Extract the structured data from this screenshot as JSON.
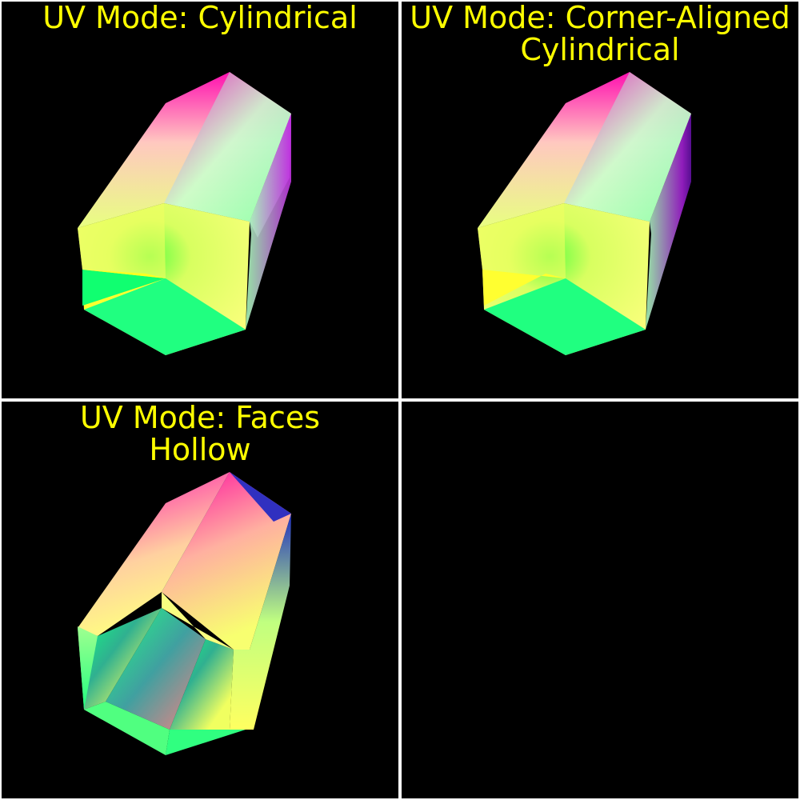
{
  "panels": [
    {
      "title": "UV Mode: Cylindrical"
    },
    {
      "title": "UV Mode: Corner-Aligned\nCylindrical"
    },
    {
      "title": "UV Mode: Faces\nHollow"
    },
    {
      "title": ""
    }
  ],
  "colors": {
    "background": "#000000",
    "title_text": "#ffff00",
    "divider": "#ffffff",
    "magenta": "#ff10b0",
    "yellow": "#ffff40",
    "green": "#10ff80",
    "blue": "#2020c0",
    "mint": "#a0ffb0"
  }
}
